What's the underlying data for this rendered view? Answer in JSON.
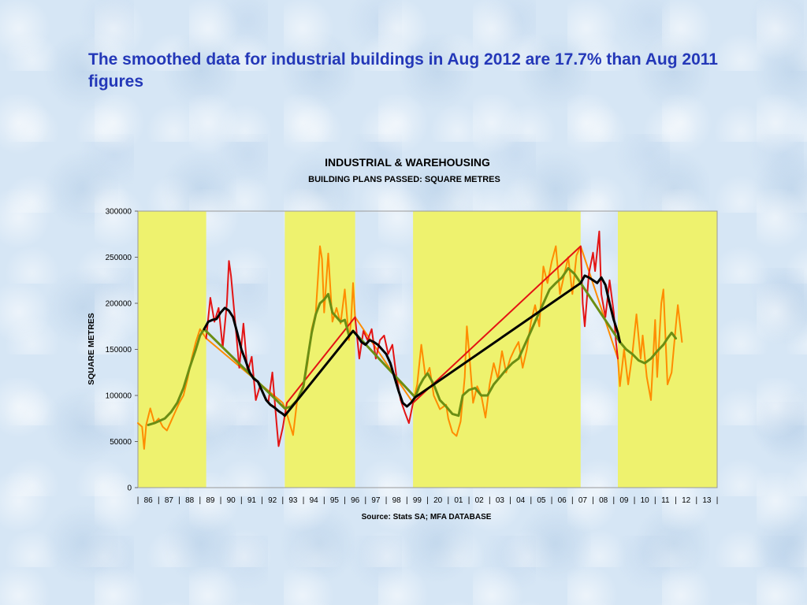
{
  "headline": "The smoothed data for industrial buildings in Aug 2012 are 17.7% than Aug 2011 figures",
  "colors": {
    "headline": "#2438b8",
    "shading": "#eef26e",
    "series_raw_a": "#ff8c00",
    "series_raw_b": "#e31414",
    "series_smooth_a": "#6b8e14",
    "series_smooth_b": "#000000"
  },
  "chart_data": {
    "type": "line",
    "title": "INDUSTRIAL & WAREHOUSING",
    "subtitle": "BUILDING PLANS PASSED:  SQUARE METRES",
    "ylabel": "SQUARE METRES",
    "source": "Source:  Stats SA; MFA DATABASE",
    "xlim": [
      1986,
      2014
    ],
    "ylim": [
      0,
      300000
    ],
    "yticks": [
      "0",
      "50000",
      "100000",
      "150000",
      "200000",
      "250000",
      "300000"
    ],
    "xtick_labels": [
      "86",
      "87",
      "88",
      "89",
      "90",
      "91",
      "92",
      "93",
      "94",
      "95",
      "96",
      "97",
      "98",
      "99",
      "20",
      "01",
      "02",
      "03",
      "04",
      "05",
      "06",
      "07",
      "08",
      "09",
      "10",
      "11",
      "12",
      "13"
    ],
    "grid": false,
    "shaded_periods": [
      [
        1986.0,
        1989.3
      ],
      [
        1993.1,
        1996.5
      ],
      [
        1999.3,
        2007.4
      ],
      [
        2009.2,
        2014.0
      ]
    ],
    "series": [
      {
        "style": "raw-orange",
        "points": [
          [
            1986.0,
            70000
          ],
          [
            1986.2,
            66000
          ],
          [
            1986.3,
            42000
          ],
          [
            1986.4,
            68000
          ],
          [
            1986.6,
            86000
          ],
          [
            1986.8,
            70000
          ],
          [
            1987.0,
            75000
          ],
          [
            1987.2,
            66000
          ],
          [
            1987.4,
            62000
          ],
          [
            1987.6,
            72000
          ],
          [
            1987.8,
            82000
          ],
          [
            1988.0,
            92000
          ],
          [
            1988.2,
            100000
          ],
          [
            1988.4,
            118000
          ],
          [
            1988.6,
            140000
          ],
          [
            1988.8,
            158000
          ],
          [
            1989.0,
            172000
          ],
          [
            1989.3,
            162000
          ],
          [
            1993.0,
            92000
          ],
          [
            1993.2,
            80000
          ],
          [
            1993.5,
            57000
          ],
          [
            1993.7,
            95000
          ],
          [
            1994.0,
            108000
          ],
          [
            1994.2,
            135000
          ],
          [
            1994.4,
            172000
          ],
          [
            1994.6,
            190000
          ],
          [
            1994.8,
            262000
          ],
          [
            1994.9,
            248000
          ],
          [
            1995.0,
            190000
          ],
          [
            1995.2,
            254000
          ],
          [
            1995.4,
            180000
          ],
          [
            1995.6,
            195000
          ],
          [
            1995.8,
            178000
          ],
          [
            1996.0,
            215000
          ],
          [
            1996.2,
            160000
          ],
          [
            1996.3,
            180000
          ],
          [
            1996.4,
            222000
          ],
          [
            1996.5,
            185000
          ],
          [
            1999.3,
            92000
          ],
          [
            1999.5,
            112000
          ],
          [
            1999.7,
            155000
          ],
          [
            1999.9,
            120000
          ],
          [
            2000.1,
            130000
          ],
          [
            2000.3,
            100000
          ],
          [
            2000.6,
            85000
          ],
          [
            2000.9,
            90000
          ],
          [
            2001.0,
            75000
          ],
          [
            2001.2,
            60000
          ],
          [
            2001.4,
            56000
          ],
          [
            2001.6,
            72000
          ],
          [
            2001.8,
            120000
          ],
          [
            2001.9,
            175000
          ],
          [
            2002.0,
            150000
          ],
          [
            2002.2,
            92000
          ],
          [
            2002.4,
            110000
          ],
          [
            2002.6,
            100000
          ],
          [
            2002.8,
            76000
          ],
          [
            2003.0,
            112000
          ],
          [
            2003.2,
            135000
          ],
          [
            2003.4,
            118000
          ],
          [
            2003.6,
            148000
          ],
          [
            2003.8,
            125000
          ],
          [
            2004.0,
            140000
          ],
          [
            2004.2,
            150000
          ],
          [
            2004.4,
            158000
          ],
          [
            2004.6,
            130000
          ],
          [
            2004.8,
            150000
          ],
          [
            2005.0,
            180000
          ],
          [
            2005.2,
            198000
          ],
          [
            2005.4,
            175000
          ],
          [
            2005.6,
            240000
          ],
          [
            2005.8,
            222000
          ],
          [
            2006.0,
            245000
          ],
          [
            2006.2,
            262000
          ],
          [
            2006.4,
            210000
          ],
          [
            2006.6,
            230000
          ],
          [
            2006.8,
            250000
          ],
          [
            2007.0,
            210000
          ],
          [
            2007.2,
            252000
          ],
          [
            2007.4,
            262000
          ],
          [
            2009.2,
            140000
          ],
          [
            2009.3,
            110000
          ],
          [
            2009.5,
            150000
          ],
          [
            2009.7,
            112000
          ],
          [
            2009.9,
            145000
          ],
          [
            2010.1,
            188000
          ],
          [
            2010.3,
            140000
          ],
          [
            2010.4,
            165000
          ],
          [
            2010.6,
            120000
          ],
          [
            2010.8,
            95000
          ],
          [
            2011.0,
            182000
          ],
          [
            2011.1,
            120000
          ],
          [
            2011.3,
            200000
          ],
          [
            2011.4,
            215000
          ],
          [
            2011.6,
            112000
          ],
          [
            2011.8,
            125000
          ],
          [
            2012.0,
            175000
          ],
          [
            2012.1,
            198000
          ],
          [
            2012.3,
            158000
          ]
        ]
      },
      {
        "style": "raw-red",
        "points": [
          [
            1989.3,
            162000
          ],
          [
            1989.5,
            206000
          ],
          [
            1989.7,
            180000
          ],
          [
            1989.9,
            195000
          ],
          [
            1990.1,
            152000
          ],
          [
            1990.3,
            200000
          ],
          [
            1990.4,
            246000
          ],
          [
            1990.5,
            230000
          ],
          [
            1990.7,
            180000
          ],
          [
            1990.9,
            130000
          ],
          [
            1991.1,
            178000
          ],
          [
            1991.3,
            125000
          ],
          [
            1991.5,
            142000
          ],
          [
            1991.7,
            95000
          ],
          [
            1991.9,
            110000
          ],
          [
            1992.1,
            100000
          ],
          [
            1992.3,
            92000
          ],
          [
            1992.5,
            125000
          ],
          [
            1992.7,
            70000
          ],
          [
            1992.8,
            45000
          ],
          [
            1993.0,
            65000
          ],
          [
            1993.2,
            92000
          ],
          [
            1996.5,
            185000
          ],
          [
            1996.7,
            140000
          ],
          [
            1996.9,
            170000
          ],
          [
            1997.1,
            160000
          ],
          [
            1997.3,
            172000
          ],
          [
            1997.5,
            140000
          ],
          [
            1997.7,
            160000
          ],
          [
            1997.9,
            165000
          ],
          [
            1998.1,
            145000
          ],
          [
            1998.3,
            155000
          ],
          [
            1998.5,
            120000
          ],
          [
            1998.7,
            95000
          ],
          [
            1998.9,
            82000
          ],
          [
            1999.1,
            70000
          ],
          [
            1999.3,
            92000
          ],
          [
            2007.4,
            262000
          ],
          [
            2007.5,
            200000
          ],
          [
            2007.6,
            175000
          ],
          [
            2007.8,
            232000
          ],
          [
            2008.0,
            255000
          ],
          [
            2008.1,
            235000
          ],
          [
            2008.3,
            278000
          ],
          [
            2008.4,
            210000
          ],
          [
            2008.6,
            185000
          ],
          [
            2008.8,
            225000
          ],
          [
            2009.0,
            190000
          ],
          [
            2009.1,
            160000
          ],
          [
            2009.2,
            140000
          ]
        ]
      },
      {
        "style": "smooth-green",
        "points": [
          [
            1986.5,
            68000
          ],
          [
            1986.8,
            70000
          ],
          [
            1987.0,
            72000
          ],
          [
            1987.3,
            75000
          ],
          [
            1987.6,
            82000
          ],
          [
            1987.9,
            92000
          ],
          [
            1988.2,
            108000
          ],
          [
            1988.5,
            130000
          ],
          [
            1988.8,
            150000
          ],
          [
            1989.0,
            165000
          ],
          [
            1989.2,
            172000
          ],
          [
            1993.1,
            86000
          ],
          [
            1993.4,
            88000
          ],
          [
            1993.7,
            95000
          ],
          [
            1994.0,
            110000
          ],
          [
            1994.2,
            140000
          ],
          [
            1994.4,
            168000
          ],
          [
            1994.6,
            188000
          ],
          [
            1994.8,
            200000
          ],
          [
            1995.0,
            204000
          ],
          [
            1995.2,
            210000
          ],
          [
            1995.4,
            190000
          ],
          [
            1995.6,
            185000
          ],
          [
            1995.8,
            180000
          ],
          [
            1996.0,
            182000
          ],
          [
            1996.2,
            165000
          ],
          [
            1996.4,
            170000
          ],
          [
            1999.4,
            98000
          ],
          [
            1999.6,
            110000
          ],
          [
            1999.8,
            118000
          ],
          [
            2000.0,
            124000
          ],
          [
            2000.3,
            112000
          ],
          [
            2000.6,
            95000
          ],
          [
            2000.9,
            88000
          ],
          [
            2001.2,
            80000
          ],
          [
            2001.5,
            78000
          ],
          [
            2001.7,
            100000
          ],
          [
            2002.0,
            106000
          ],
          [
            2002.3,
            108000
          ],
          [
            2002.6,
            100000
          ],
          [
            2002.9,
            100000
          ],
          [
            2003.2,
            112000
          ],
          [
            2003.5,
            120000
          ],
          [
            2003.8,
            128000
          ],
          [
            2004.1,
            135000
          ],
          [
            2004.4,
            140000
          ],
          [
            2004.7,
            155000
          ],
          [
            2005.0,
            170000
          ],
          [
            2005.3,
            185000
          ],
          [
            2005.6,
            200000
          ],
          [
            2005.9,
            215000
          ],
          [
            2006.2,
            222000
          ],
          [
            2006.5,
            228000
          ],
          [
            2006.8,
            238000
          ],
          [
            2007.1,
            232000
          ],
          [
            2007.4,
            222000
          ],
          [
            2009.3,
            158000
          ],
          [
            2009.6,
            150000
          ],
          [
            2009.9,
            145000
          ],
          [
            2010.2,
            138000
          ],
          [
            2010.5,
            135000
          ],
          [
            2010.8,
            140000
          ],
          [
            2011.1,
            148000
          ],
          [
            2011.4,
            155000
          ],
          [
            2011.6,
            162000
          ],
          [
            2011.8,
            168000
          ],
          [
            2012.0,
            162000
          ]
        ]
      },
      {
        "style": "smooth-black",
        "points": [
          [
            1989.2,
            172000
          ],
          [
            1989.4,
            180000
          ],
          [
            1989.6,
            182000
          ],
          [
            1989.8,
            183000
          ],
          [
            1990.0,
            190000
          ],
          [
            1990.2,
            195000
          ],
          [
            1990.4,
            192000
          ],
          [
            1990.6,
            185000
          ],
          [
            1990.8,
            168000
          ],
          [
            1991.0,
            150000
          ],
          [
            1991.2,
            138000
          ],
          [
            1991.4,
            125000
          ],
          [
            1991.6,
            118000
          ],
          [
            1991.8,
            115000
          ],
          [
            1992.0,
            105000
          ],
          [
            1992.2,
            95000
          ],
          [
            1992.4,
            90000
          ],
          [
            1992.6,
            87000
          ],
          [
            1992.8,
            83000
          ],
          [
            1993.0,
            80000
          ],
          [
            1993.1,
            78000
          ],
          [
            1996.4,
            170000
          ],
          [
            1996.6,
            165000
          ],
          [
            1996.8,
            158000
          ],
          [
            1997.0,
            155000
          ],
          [
            1997.2,
            160000
          ],
          [
            1997.4,
            158000
          ],
          [
            1997.6,
            155000
          ],
          [
            1997.8,
            150000
          ],
          [
            1998.0,
            145000
          ],
          [
            1998.2,
            135000
          ],
          [
            1998.4,
            120000
          ],
          [
            1998.6,
            105000
          ],
          [
            1998.8,
            92000
          ],
          [
            1999.0,
            88000
          ],
          [
            1999.2,
            92000
          ],
          [
            1999.4,
            98000
          ],
          [
            2007.4,
            222000
          ],
          [
            2007.6,
            230000
          ],
          [
            2007.8,
            228000
          ],
          [
            2008.0,
            225000
          ],
          [
            2008.2,
            222000
          ],
          [
            2008.4,
            228000
          ],
          [
            2008.6,
            220000
          ],
          [
            2008.8,
            200000
          ],
          [
            2009.0,
            182000
          ],
          [
            2009.2,
            168000
          ],
          [
            2009.3,
            158000
          ]
        ]
      }
    ]
  }
}
